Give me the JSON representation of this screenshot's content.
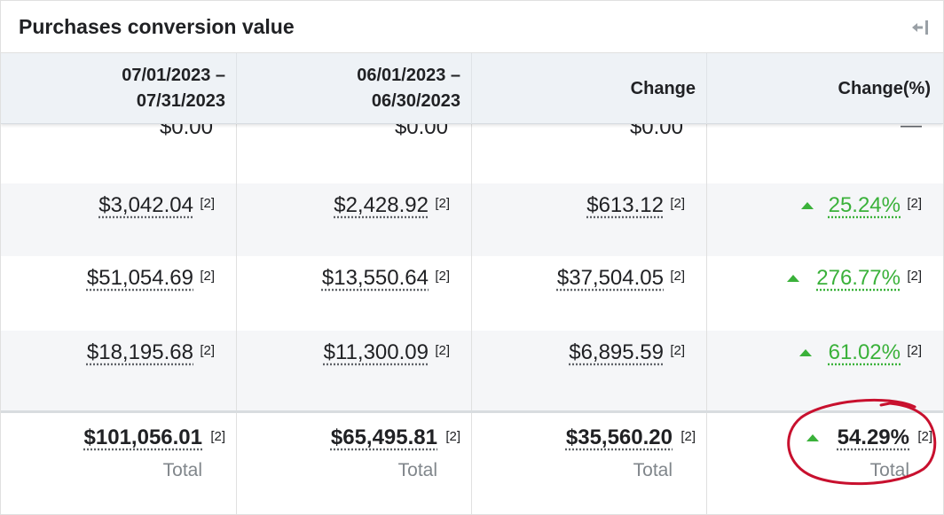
{
  "card": {
    "title": "Purchases conversion value",
    "collapse_icon": "collapse-right-icon"
  },
  "columns": [
    {
      "label": "07/01/2023 –\n07/31/2023"
    },
    {
      "label": "06/01/2023 –\n06/30/2023"
    },
    {
      "label": "Change"
    },
    {
      "label": "Change(%)"
    }
  ],
  "rows": [
    {
      "cells": [
        "$0.00",
        "$0.00",
        "$0.00",
        "—"
      ]
    },
    {
      "cells": [
        "$3,042.04",
        "$2,428.92",
        "$613.12",
        "25.24%"
      ],
      "footnotes": [
        "[2]",
        "[2]",
        "[2]",
        "[2]"
      ]
    },
    {
      "cells": [
        "$51,054.69",
        "$13,550.64",
        "$37,504.05",
        "276.77%"
      ],
      "footnotes": [
        "[2]",
        "[2]",
        "[2]",
        "[2]"
      ]
    },
    {
      "cells": [
        "$18,195.68",
        "$11,300.09",
        "$6,895.59",
        "61.02%"
      ],
      "footnotes": [
        "[2]",
        "[2]",
        "[2]",
        "[2]"
      ]
    }
  ],
  "total": {
    "cells": [
      "$101,056.01",
      "$65,495.81",
      "$35,560.20",
      "54.29%"
    ],
    "footnotes": [
      "[2]",
      "[2]",
      "[2]",
      "[2]"
    ],
    "label": "Total"
  },
  "colors": {
    "positive": "#3ab13a",
    "header_bg": "#eef2f6",
    "annotation": "#c8102e"
  }
}
